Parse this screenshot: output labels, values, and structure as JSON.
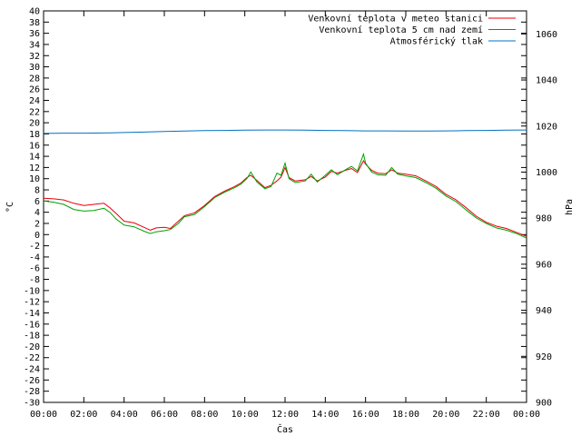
{
  "chart_data": {
    "type": "line",
    "xlabel": "Čas",
    "ylabel": "°C",
    "y2label": "hPa",
    "x_ticks": [
      "00:00",
      "02:00",
      "04:00",
      "06:00",
      "08:00",
      "10:00",
      "12:00",
      "14:00",
      "16:00",
      "18:00",
      "20:00",
      "22:00",
      "00:00"
    ],
    "x_range": [
      0,
      24
    ],
    "y_range": [
      -30,
      40
    ],
    "y_ticks": [
      40,
      38,
      36,
      34,
      32,
      30,
      28,
      26,
      24,
      22,
      20,
      18,
      16,
      14,
      12,
      10,
      8,
      6,
      4,
      2,
      0,
      -2,
      -4,
      -6,
      -8,
      -10,
      -12,
      -14,
      -16,
      -18,
      -20,
      -22,
      -24,
      -26,
      -28,
      -30
    ],
    "y2_range": [
      900,
      1070
    ],
    "y2_ticks": [
      1060,
      1040,
      1020,
      1000,
      980,
      960,
      940,
      920,
      900
    ],
    "legend_position": "top-right",
    "grid": false,
    "series": [
      {
        "name": "Venkovní teplota v meteo stanici",
        "color": "#e8000b",
        "axis": "left",
        "x": [
          0,
          0.5,
          1,
          1.5,
          2,
          2.5,
          3,
          3.3,
          3.6,
          4,
          4.5,
          5,
          5.3,
          5.6,
          6,
          6.3,
          6.7,
          7,
          7.5,
          8,
          8.5,
          9,
          9.5,
          9.8,
          10.1,
          10.3,
          10.6,
          11,
          11.3,
          11.6,
          11.8,
          12,
          12.2,
          12.5,
          13,
          13.3,
          13.6,
          14,
          14.3,
          14.6,
          15,
          15.3,
          15.6,
          15.9,
          16,
          16.3,
          16.6,
          17,
          17.3,
          17.6,
          18,
          18.5,
          19,
          19.5,
          20,
          20.5,
          21,
          21.5,
          22,
          22.5,
          23,
          23.5,
          24
        ],
        "y": [
          6.5,
          6.4,
          6.2,
          5.6,
          5.2,
          5.4,
          5.6,
          4.8,
          3.8,
          2.4,
          2.1,
          1.3,
          0.8,
          1.2,
          1.3,
          1.1,
          2.4,
          3.4,
          3.9,
          5.2,
          6.8,
          7.8,
          8.6,
          9.2,
          10.2,
          10.6,
          9.7,
          8.4,
          8.8,
          9.6,
          10.3,
          12.0,
          10.2,
          9.6,
          9.8,
          10.4,
          9.6,
          10.3,
          11.3,
          11.0,
          11.5,
          11.8,
          11.1,
          13.2,
          12.6,
          11.5,
          11.0,
          10.9,
          11.6,
          11.0,
          10.8,
          10.5,
          9.6,
          8.6,
          7.2,
          6.2,
          4.8,
          3.3,
          2.2,
          1.5,
          1.1,
          0.4,
          -0.3
        ]
      },
      {
        "name": "Venkovní teplota 5 cm nad zemí",
        "color": "#00a000",
        "axis": "left",
        "x": [
          0,
          0.5,
          1,
          1.5,
          2,
          2.5,
          3,
          3.3,
          3.6,
          4,
          4.5,
          5,
          5.3,
          5.6,
          6,
          6.3,
          6.7,
          7,
          7.5,
          8,
          8.5,
          9,
          9.5,
          9.8,
          10.1,
          10.3,
          10.6,
          11,
          11.3,
          11.6,
          11.8,
          12,
          12.2,
          12.5,
          13,
          13.3,
          13.6,
          14,
          14.3,
          14.6,
          15,
          15.3,
          15.6,
          15.9,
          16,
          16.3,
          16.6,
          17,
          17.3,
          17.6,
          18,
          18.5,
          19,
          19.5,
          20,
          20.5,
          21,
          21.5,
          22,
          22.5,
          23,
          23.5,
          24
        ],
        "y": [
          6.0,
          5.8,
          5.4,
          4.5,
          4.2,
          4.3,
          4.7,
          4.0,
          2.8,
          1.7,
          1.4,
          0.6,
          0.2,
          0.5,
          0.7,
          0.9,
          2.0,
          3.2,
          3.6,
          5.0,
          6.6,
          7.6,
          8.4,
          9.0,
          10.0,
          11.2,
          9.4,
          8.2,
          8.6,
          11.0,
          10.6,
          12.8,
          10.0,
          9.3,
          9.6,
          10.8,
          9.4,
          10.6,
          11.6,
          10.7,
          11.6,
          12.2,
          11.4,
          14.4,
          12.8,
          11.2,
          10.7,
          10.6,
          12.0,
          10.8,
          10.5,
          10.2,
          9.3,
          8.3,
          6.9,
          5.9,
          4.4,
          3.0,
          2.0,
          1.2,
          0.8,
          0.2,
          -0.6
        ]
      },
      {
        "name": "Atmosférický tlak",
        "color": "#0070c0",
        "axis": "right",
        "x": [
          0,
          1,
          2,
          3,
          4,
          5,
          6,
          7,
          8,
          9,
          10,
          11,
          12,
          13,
          14,
          15,
          16,
          17,
          18,
          19,
          20,
          21,
          22,
          23,
          24
        ],
        "y": [
          1016.8,
          1016.9,
          1016.9,
          1017.0,
          1017.2,
          1017.4,
          1017.6,
          1017.8,
          1018.0,
          1018.1,
          1018.2,
          1018.3,
          1018.3,
          1018.2,
          1018.1,
          1018.0,
          1017.9,
          1017.9,
          1017.8,
          1017.8,
          1017.9,
          1018.0,
          1018.1,
          1018.2,
          1018.3
        ]
      }
    ]
  }
}
